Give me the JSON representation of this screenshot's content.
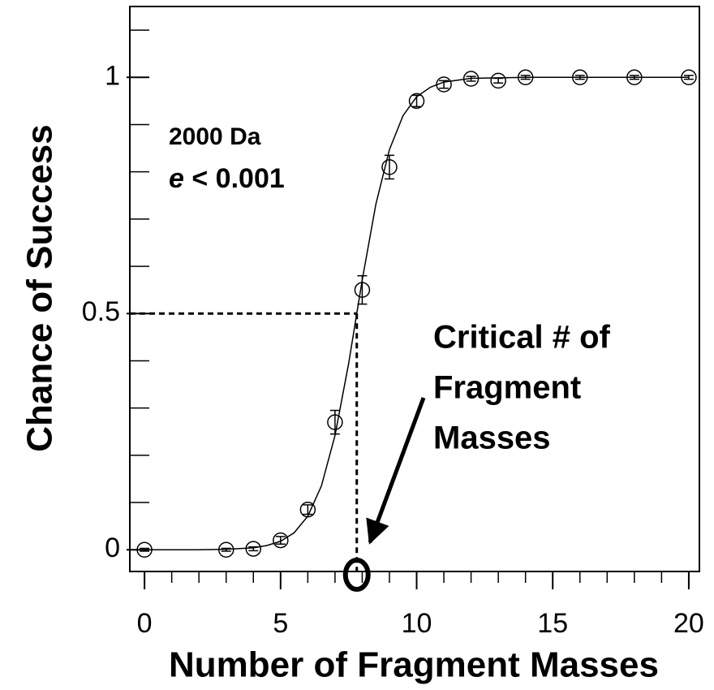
{
  "chart_data": {
    "type": "scatter",
    "xlabel": "Number of Fragment Masses",
    "ylabel": "Chance of Success",
    "annotation": "2000 Da",
    "threshold_symbol": "e",
    "threshold_text": "< 0.001",
    "callout": [
      "Critical # of",
      "Fragment",
      "Masses"
    ],
    "x": [
      0,
      3,
      4,
      5,
      6,
      7,
      8,
      9,
      10,
      11,
      12,
      13,
      14,
      16,
      18,
      20
    ],
    "values": [
      0,
      0,
      0.002,
      0.02,
      0.085,
      0.27,
      0.55,
      0.81,
      0.95,
      0.985,
      0.997,
      0.993,
      1,
      1,
      1,
      1
    ],
    "errors": [
      0.003,
      0.003,
      0.004,
      0.008,
      0.01,
      0.025,
      0.03,
      0.025,
      0.012,
      0.008,
      0.005,
      0.005,
      0.004,
      0.004,
      0.004,
      0.004
    ],
    "fit": {
      "x": [
        0,
        2,
        3,
        4,
        4.5,
        5,
        5.5,
        6,
        6.5,
        7,
        7.5,
        8,
        8.5,
        9,
        9.5,
        10,
        10.5,
        11,
        12,
        13,
        14,
        20
      ],
      "values": [
        0,
        0,
        0.001,
        0.004,
        0.009,
        0.018,
        0.036,
        0.071,
        0.135,
        0.242,
        0.394,
        0.571,
        0.731,
        0.847,
        0.919,
        0.959,
        0.979,
        0.99,
        0.998,
        0.999,
        1,
        1
      ]
    },
    "critical": {
      "x": 7.8,
      "y": 0.5
    },
    "xlim": [
      -0.54,
      20.39
    ],
    "ylim": [
      -0.046,
      1.15
    ],
    "xticks": [
      0,
      5,
      10,
      15,
      20
    ],
    "xticks_minor": [
      0,
      1,
      2,
      3,
      4,
      5,
      6,
      7,
      8,
      9,
      10,
      11,
      12,
      13,
      14,
      15,
      16,
      17,
      18,
      19,
      20
    ],
    "yticks": [
      0,
      0.5,
      1
    ],
    "yticks_minor": [
      0,
      0.1,
      0.2,
      0.3,
      0.4,
      0.5,
      0.6,
      0.7,
      0.8,
      0.9,
      1,
      1.1
    ],
    "color": "#000000"
  }
}
